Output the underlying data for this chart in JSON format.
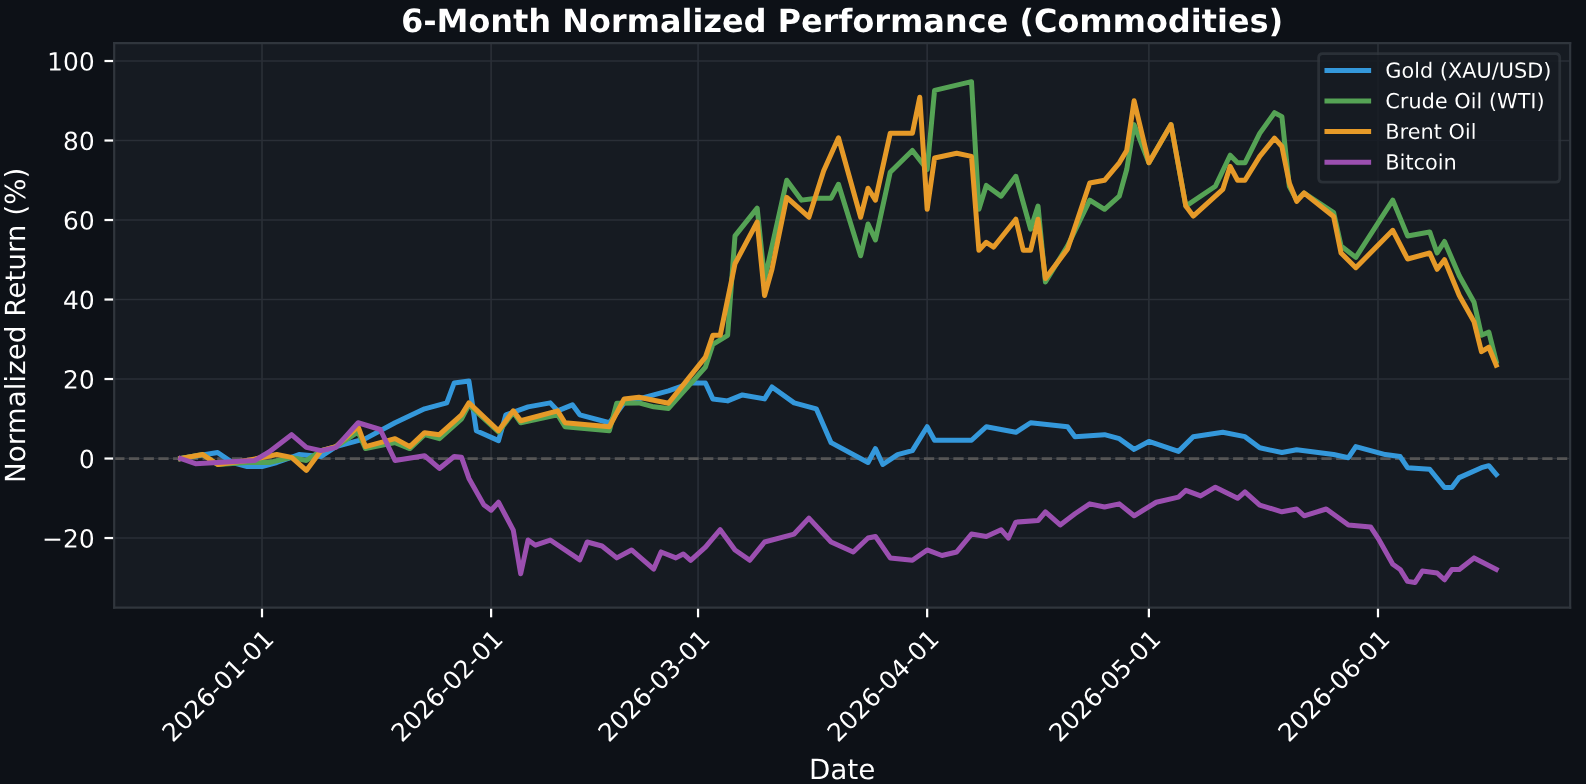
{
  "chart_data": {
    "type": "line",
    "title": "6-Month Normalized Performance (Commodities)",
    "xlabel": "Date",
    "ylabel": "Normalized Return (%)",
    "xlim": [
      "2025-12-12",
      "2026-06-27"
    ],
    "ylim": [
      -37.5,
      104.5
    ],
    "xticks": [
      {
        "value": "2026-01-01",
        "label": "2026-01-01"
      },
      {
        "value": "2026-02-01",
        "label": "2026-02-01"
      },
      {
        "value": "2026-03-01",
        "label": "2026-03-01"
      },
      {
        "value": "2026-04-01",
        "label": "2026-04-01"
      },
      {
        "value": "2026-05-01",
        "label": "2026-05-01"
      },
      {
        "value": "2026-06-01",
        "label": "2026-06-01"
      }
    ],
    "yticks": [
      {
        "value": -20,
        "label": "−20"
      },
      0,
      20,
      40,
      60,
      80,
      100
    ],
    "grid": true,
    "legend": "top right",
    "line_style": "solid",
    "ref_lines": [
      {
        "axis": "y",
        "value": 0,
        "label": null,
        "color": "#555555",
        "line_style": "dashed"
      }
    ],
    "series": [
      {
        "name": "Gold (XAU/USD)",
        "color": "#3498db",
        "x": [
          "2025-12-21",
          "2025-12-26",
          "2025-12-28",
          "2025-12-30",
          "2026-01-01",
          "2026-01-03",
          "2026-01-06",
          "2026-01-09",
          "2026-01-11",
          "2026-01-15",
          "2026-01-19",
          "2026-01-23",
          "2026-01-26",
          "2026-01-27",
          "2026-01-29",
          "2026-01-30",
          "2026-02-02",
          "2026-02-03",
          "2026-02-06",
          "2026-02-09",
          "2026-02-10",
          "2026-02-12",
          "2026-02-13",
          "2026-02-17",
          "2026-02-19",
          "2026-02-21",
          "2026-02-25",
          "2026-02-28",
          "2026-03-02",
          "2026-03-03",
          "2026-03-05",
          "2026-03-07",
          "2026-03-10",
          "2026-03-11",
          "2026-03-14",
          "2026-03-17",
          "2026-03-19",
          "2026-03-24",
          "2026-03-25",
          "2026-03-26",
          "2026-03-28",
          "2026-03-30",
          "2026-04-01",
          "2026-04-02",
          "2026-04-07",
          "2026-04-09",
          "2026-04-13",
          "2026-04-15",
          "2026-04-20",
          "2026-04-21",
          "2026-04-25",
          "2026-04-27",
          "2026-04-29",
          "2026-05-01",
          "2026-05-05",
          "2026-05-07",
          "2026-05-11",
          "2026-05-14",
          "2026-05-16",
          "2026-05-19",
          "2026-05-21",
          "2026-05-26",
          "2026-05-28",
          "2026-05-29",
          "2026-06-02",
          "2026-06-04",
          "2026-06-05",
          "2026-06-08",
          "2026-06-10",
          "2026-06-11",
          "2026-06-12",
          "2026-06-15",
          "2026-06-16",
          "2026-06-17"
        ],
        "values": [
          0,
          1.5,
          -1,
          -2,
          -2,
          -1,
          1,
          0.5,
          3,
          5,
          9,
          12.5,
          14,
          19,
          19.5,
          7,
          4.5,
          11,
          13,
          14,
          12,
          13.5,
          11,
          9,
          14,
          15,
          17,
          19,
          19,
          15,
          14.5,
          16,
          15,
          18,
          14,
          12.5,
          4,
          -1,
          2.5,
          -1.5,
          1,
          2,
          8,
          4.6,
          4.6,
          8,
          6.6,
          9,
          8,
          5.5,
          6,
          5,
          2.3,
          4.3,
          1.8,
          5.5,
          6.6,
          5.5,
          2.7,
          1.5,
          2.2,
          1,
          0.2,
          3,
          1,
          0.5,
          -2.3,
          -2.7,
          -7.3,
          -7.3,
          -4.8,
          -2.3,
          -1.8,
          -4
        ]
      },
      {
        "name": "Crude Oil (WTI)",
        "color": "#55a355",
        "x": [
          "2025-12-21",
          "2025-12-24",
          "2025-12-26",
          "2025-12-30",
          "2026-01-02",
          "2026-01-05",
          "2026-01-07",
          "2026-01-09",
          "2026-01-11",
          "2026-01-14",
          "2026-01-15",
          "2026-01-19",
          "2026-01-21",
          "2026-01-23",
          "2026-01-25",
          "2026-01-28",
          "2026-01-29",
          "2026-02-02",
          "2026-02-04",
          "2026-02-05",
          "2026-02-10",
          "2026-02-11",
          "2026-02-17",
          "2026-02-18",
          "2026-02-21",
          "2026-02-23",
          "2026-02-25",
          "2026-03-02",
          "2026-03-03",
          "2026-03-05",
          "2026-03-06",
          "2026-03-09",
          "2026-03-10",
          "2026-03-13",
          "2026-03-15",
          "2026-03-17",
          "2026-03-19",
          "2026-03-20",
          "2026-03-23",
          "2026-03-24",
          "2026-03-25",
          "2026-03-27",
          "2026-03-30",
          "2026-04-01",
          "2026-04-02",
          "2026-04-07",
          "2026-04-08",
          "2026-04-09",
          "2026-04-11",
          "2026-04-13",
          "2026-04-15",
          "2026-04-16",
          "2026-04-17",
          "2026-04-20",
          "2026-04-23",
          "2026-04-25",
          "2026-04-27",
          "2026-04-28",
          "2026-04-29",
          "2026-05-01",
          "2026-05-04",
          "2026-05-06",
          "2026-05-10",
          "2026-05-12",
          "2026-05-13",
          "2026-05-14",
          "2026-05-16",
          "2026-05-18",
          "2026-05-19",
          "2026-05-20",
          "2026-05-21",
          "2026-05-22",
          "2026-05-26",
          "2026-05-27",
          "2026-05-29",
          "2026-06-03",
          "2026-06-05",
          "2026-06-08",
          "2026-06-09",
          "2026-06-10",
          "2026-06-12",
          "2026-06-14",
          "2026-06-15",
          "2026-06-16",
          "2026-06-17"
        ],
        "values": [
          0,
          1,
          -1.5,
          -1,
          -1,
          0.3,
          -0.5,
          2,
          3,
          6.7,
          2.5,
          4,
          2.5,
          6,
          5,
          10,
          13.5,
          6.7,
          11.6,
          9,
          11,
          8,
          7,
          13.9,
          14,
          13,
          12.6,
          23,
          28.7,
          31,
          56,
          63,
          45,
          70,
          65,
          65.5,
          65.5,
          69,
          51,
          59,
          55,
          72,
          77.5,
          72.7,
          92.6,
          94.8,
          62.7,
          68.7,
          66,
          71,
          57.7,
          63.5,
          44.4,
          53.5,
          65,
          62.7,
          66,
          72.7,
          84,
          74.4,
          84,
          63.5,
          68.5,
          76.3,
          74.4,
          74.4,
          81.8,
          87,
          86,
          68.5,
          65,
          66.8,
          61.9,
          53.5,
          50.6,
          65,
          56,
          57,
          51.7,
          54.6,
          46,
          39.3,
          31,
          31.8,
          24.4
        ]
      },
      {
        "name": "Brent Oil",
        "color": "#e69a28",
        "x": [
          "2025-12-21",
          "2025-12-24",
          "2025-12-26",
          "2025-12-30",
          "2026-01-03",
          "2026-01-05",
          "2026-01-07",
          "2026-01-09",
          "2026-01-11",
          "2026-01-14",
          "2026-01-15",
          "2026-01-19",
          "2026-01-21",
          "2026-01-23",
          "2026-01-25",
          "2026-01-28",
          "2026-01-29",
          "2026-02-02",
          "2026-02-04",
          "2026-02-05",
          "2026-02-10",
          "2026-02-11",
          "2026-02-17",
          "2026-02-19",
          "2026-02-21",
          "2026-02-25",
          "2026-03-02",
          "2026-03-03",
          "2026-03-04",
          "2026-03-06",
          "2026-03-09",
          "2026-03-10",
          "2026-03-11",
          "2026-03-13",
          "2026-03-16",
          "2026-03-18",
          "2026-03-20",
          "2026-03-23",
          "2026-03-24",
          "2026-03-25",
          "2026-03-27",
          "2026-03-30",
          "2026-03-31",
          "2026-04-01",
          "2026-04-02",
          "2026-04-05",
          "2026-04-07",
          "2026-04-08",
          "2026-04-09",
          "2026-04-10",
          "2026-04-13",
          "2026-04-14",
          "2026-04-15",
          "2026-04-16",
          "2026-04-17",
          "2026-04-20",
          "2026-04-23",
          "2026-04-25",
          "2026-04-27",
          "2026-04-28",
          "2026-04-29",
          "2026-05-01",
          "2026-05-04",
          "2026-05-06",
          "2026-05-07",
          "2026-05-11",
          "2026-05-12",
          "2026-05-13",
          "2026-05-14",
          "2026-05-16",
          "2026-05-18",
          "2026-05-19",
          "2026-05-20",
          "2026-05-21",
          "2026-05-22",
          "2026-05-26",
          "2026-05-27",
          "2026-05-29",
          "2026-06-03",
          "2026-06-05",
          "2026-06-08",
          "2026-06-09",
          "2026-06-10",
          "2026-06-12",
          "2026-06-14",
          "2026-06-15",
          "2026-06-16",
          "2026-06-17"
        ],
        "values": [
          0,
          1,
          -1.5,
          -0.5,
          1,
          0.3,
          -3,
          2,
          3,
          8,
          3,
          5,
          3,
          6.5,
          6,
          11,
          14,
          7,
          12,
          9.5,
          12,
          9,
          8,
          15,
          15.4,
          13.9,
          25.5,
          31,
          31,
          49,
          59.5,
          41,
          47.6,
          65.7,
          60.7,
          72.4,
          80.7,
          60.7,
          68,
          65,
          81.8,
          81.8,
          90.9,
          62.7,
          75.6,
          76.8,
          76,
          52.4,
          54.4,
          53.2,
          60.2,
          52.4,
          52.4,
          60.2,
          45.3,
          52.7,
          69.3,
          70,
          74.4,
          77.5,
          90,
          74.4,
          84,
          63.5,
          61,
          67.7,
          73.5,
          70,
          70,
          76,
          80.6,
          78.5,
          69.3,
          64.7,
          66.8,
          60.9,
          51.7,
          48,
          57.4,
          50.2,
          51.7,
          47.6,
          50,
          41,
          34.4,
          26.9,
          28,
          23.5
        ]
      },
      {
        "name": "Bitcoin",
        "color": "#9b4fb0",
        "x": [
          "2025-12-21",
          "2025-12-23",
          "2025-12-26",
          "2025-12-31",
          "2026-01-02",
          "2026-01-05",
          "2026-01-07",
          "2026-01-09",
          "2026-01-11",
          "2026-01-14",
          "2026-01-17",
          "2026-01-19",
          "2026-01-23",
          "2026-01-25",
          "2026-01-27",
          "2026-01-28",
          "2026-01-29",
          "2026-01-31",
          "2026-02-01",
          "2026-02-02",
          "2026-02-04",
          "2026-02-05",
          "2026-02-06",
          "2026-02-07",
          "2026-02-09",
          "2026-02-13",
          "2026-02-14",
          "2026-02-16",
          "2026-02-18",
          "2026-02-20",
          "2026-02-23",
          "2026-02-24",
          "2026-02-26",
          "2026-02-27",
          "2026-02-28",
          "2026-03-02",
          "2026-03-04",
          "2026-03-06",
          "2026-03-08",
          "2026-03-10",
          "2026-03-14",
          "2026-03-16",
          "2026-03-19",
          "2026-03-22",
          "2026-03-24",
          "2026-03-25",
          "2026-03-27",
          "2026-03-30",
          "2026-04-01",
          "2026-04-03",
          "2026-04-05",
          "2026-04-07",
          "2026-04-09",
          "2026-04-11",
          "2026-04-12",
          "2026-04-13",
          "2026-04-16",
          "2026-04-17",
          "2026-04-19",
          "2026-04-21",
          "2026-04-23",
          "2026-04-25",
          "2026-04-27",
          "2026-04-29",
          "2026-05-02",
          "2026-05-05",
          "2026-05-06",
          "2026-05-08",
          "2026-05-10",
          "2026-05-13",
          "2026-05-14",
          "2026-05-16",
          "2026-05-19",
          "2026-05-21",
          "2026-05-22",
          "2026-05-25",
          "2026-05-28",
          "2026-05-31",
          "2026-06-01",
          "2026-06-03",
          "2026-06-04",
          "2026-06-05",
          "2026-06-06",
          "2026-06-07",
          "2026-06-09",
          "2026-06-10",
          "2026-06-11",
          "2026-06-12",
          "2026-06-14",
          "2026-06-17"
        ],
        "values": [
          0,
          -1.3,
          -1,
          -0.5,
          1.7,
          6,
          2.8,
          2,
          2.8,
          9,
          7.3,
          -0.5,
          0.7,
          -2.5,
          0.5,
          0.3,
          -5,
          -11.6,
          -13,
          -11,
          -18,
          -29,
          -20.5,
          -21.8,
          -20.5,
          -25.5,
          -21,
          -22,
          -25,
          -23,
          -27.8,
          -23.5,
          -25,
          -24,
          -25.6,
          -22.3,
          -17.9,
          -23,
          -25.6,
          -21,
          -19,
          -15,
          -21,
          -23.5,
          -20,
          -19.6,
          -25,
          -25.6,
          -23,
          -24.4,
          -23.5,
          -19,
          -19.6,
          -17.9,
          -20,
          -16,
          -15.6,
          -13.4,
          -16.7,
          -13.9,
          -11.4,
          -12.2,
          -11.4,
          -14.4,
          -11,
          -9.7,
          -8,
          -9.4,
          -7.2,
          -10,
          -8.4,
          -11.7,
          -13.4,
          -12.7,
          -14.4,
          -12.7,
          -16.7,
          -17.2,
          -20,
          -26.6,
          -27.9,
          -30.9,
          -31.2,
          -28.3,
          -28.8,
          -30.5,
          -27.9,
          -27.9,
          -25,
          -27.9
        ]
      }
    ]
  }
}
